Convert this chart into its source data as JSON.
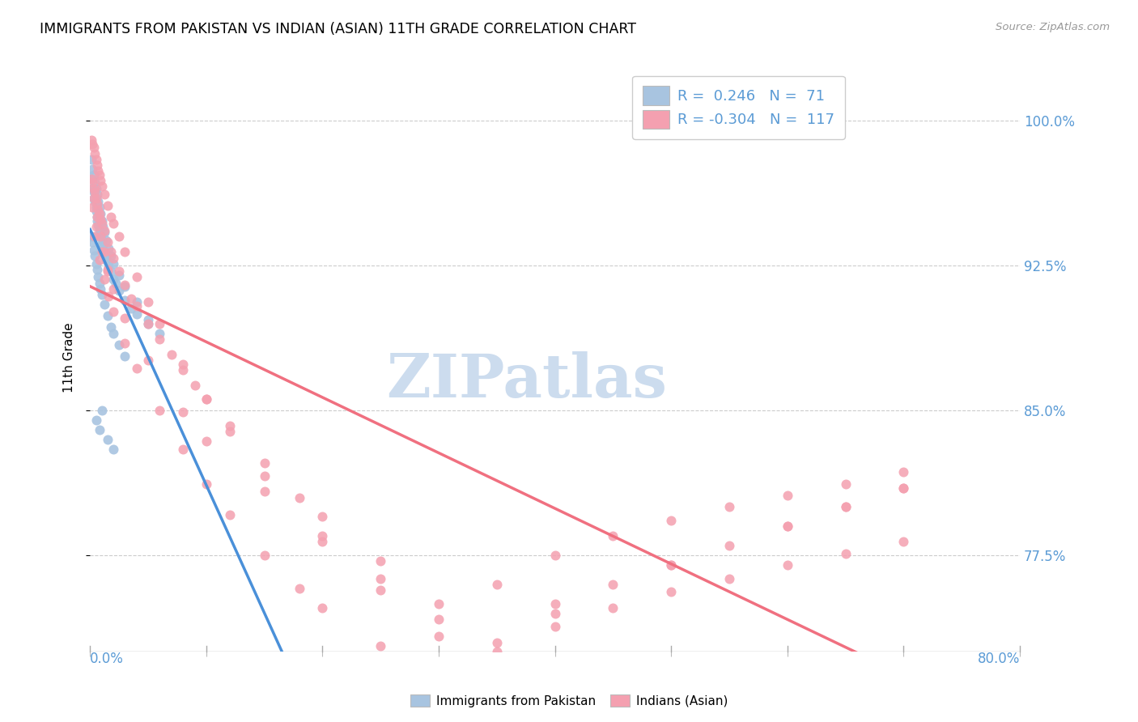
{
  "title": "IMMIGRANTS FROM PAKISTAN VS INDIAN (ASIAN) 11TH GRADE CORRELATION CHART",
  "source": "Source: ZipAtlas.com",
  "ylabel": "11th Grade",
  "ytick_values": [
    1.0,
    0.925,
    0.85,
    0.775
  ],
  "ytick_labels": [
    "100.0%",
    "92.5%",
    "85.0%",
    "77.5%"
  ],
  "xlim": [
    0.0,
    0.8
  ],
  "ylim": [
    0.725,
    1.03
  ],
  "legend_r_pakistan": "0.246",
  "legend_n_pakistan": "71",
  "legend_r_indian": "-0.304",
  "legend_n_indian": "117",
  "color_pakistan": "#a8c4e0",
  "color_indian": "#f4a0b0",
  "color_pakistan_line": "#4a90d9",
  "color_indian_line": "#f07080",
  "color_axis_labels": "#5b9bd5",
  "watermark_color": "#ccdcee",
  "pakistan_x": [
    0.001,
    0.002,
    0.003,
    0.003,
    0.004,
    0.005,
    0.005,
    0.006,
    0.006,
    0.007,
    0.008,
    0.008,
    0.009,
    0.01,
    0.01,
    0.011,
    0.012,
    0.013,
    0.014,
    0.015,
    0.016,
    0.018,
    0.02,
    0.022,
    0.025,
    0.03,
    0.035,
    0.04,
    0.05,
    0.06,
    0.001,
    0.002,
    0.003,
    0.004,
    0.005,
    0.006,
    0.007,
    0.008,
    0.009,
    0.01,
    0.011,
    0.012,
    0.014,
    0.016,
    0.018,
    0.02,
    0.025,
    0.03,
    0.04,
    0.05,
    0.001,
    0.002,
    0.003,
    0.004,
    0.005,
    0.006,
    0.007,
    0.008,
    0.009,
    0.01,
    0.012,
    0.015,
    0.018,
    0.02,
    0.025,
    0.03,
    0.01,
    0.005,
    0.008,
    0.015,
    0.02
  ],
  "pakistan_y": [
    0.97,
    0.965,
    0.963,
    0.96,
    0.958,
    0.955,
    0.953,
    0.95,
    0.948,
    0.946,
    0.944,
    0.942,
    0.94,
    0.938,
    0.936,
    0.934,
    0.932,
    0.93,
    0.928,
    0.927,
    0.925,
    0.922,
    0.918,
    0.916,
    0.912,
    0.907,
    0.903,
    0.9,
    0.895,
    0.89,
    0.98,
    0.975,
    0.972,
    0.968,
    0.965,
    0.962,
    0.958,
    0.955,
    0.952,
    0.948,
    0.945,
    0.942,
    0.938,
    0.934,
    0.93,
    0.926,
    0.92,
    0.914,
    0.906,
    0.897,
    0.94,
    0.937,
    0.933,
    0.93,
    0.926,
    0.923,
    0.919,
    0.916,
    0.913,
    0.91,
    0.905,
    0.899,
    0.893,
    0.89,
    0.884,
    0.878,
    0.85,
    0.845,
    0.84,
    0.835,
    0.83
  ],
  "indian_x": [
    0.001,
    0.002,
    0.003,
    0.004,
    0.005,
    0.006,
    0.007,
    0.008,
    0.009,
    0.01,
    0.012,
    0.015,
    0.018,
    0.02,
    0.025,
    0.03,
    0.035,
    0.04,
    0.05,
    0.06,
    0.07,
    0.08,
    0.09,
    0.1,
    0.12,
    0.15,
    0.18,
    0.2,
    0.25,
    0.3,
    0.35,
    0.4,
    0.45,
    0.5,
    0.55,
    0.6,
    0.65,
    0.7,
    0.001,
    0.002,
    0.003,
    0.004,
    0.005,
    0.006,
    0.007,
    0.008,
    0.009,
    0.01,
    0.012,
    0.015,
    0.018,
    0.02,
    0.025,
    0.03,
    0.04,
    0.05,
    0.06,
    0.08,
    0.1,
    0.12,
    0.15,
    0.2,
    0.25,
    0.3,
    0.35,
    0.4,
    0.5,
    0.6,
    0.65,
    0.7,
    0.002,
    0.005,
    0.01,
    0.015,
    0.02,
    0.03,
    0.05,
    0.08,
    0.1,
    0.15,
    0.2,
    0.25,
    0.3,
    0.35,
    0.4,
    0.45,
    0.5,
    0.55,
    0.6,
    0.65,
    0.7,
    0.004,
    0.008,
    0.012,
    0.016,
    0.02,
    0.03,
    0.04,
    0.06,
    0.08,
    0.1,
    0.12,
    0.15,
    0.18,
    0.2,
    0.25,
    0.3,
    0.35,
    0.4,
    0.45,
    0.5,
    0.55,
    0.6,
    0.65,
    0.7,
    0.003,
    0.006,
    0.009,
    0.012,
    0.015
  ],
  "indian_y": [
    0.97,
    0.968,
    0.965,
    0.963,
    0.96,
    0.957,
    0.954,
    0.952,
    0.949,
    0.947,
    0.943,
    0.937,
    0.932,
    0.929,
    0.922,
    0.915,
    0.908,
    0.904,
    0.895,
    0.887,
    0.879,
    0.871,
    0.863,
    0.856,
    0.842,
    0.823,
    0.805,
    0.795,
    0.772,
    0.75,
    0.73,
    0.745,
    0.76,
    0.77,
    0.78,
    0.79,
    0.8,
    0.81,
    0.99,
    0.988,
    0.986,
    0.983,
    0.98,
    0.977,
    0.974,
    0.972,
    0.969,
    0.966,
    0.962,
    0.956,
    0.95,
    0.947,
    0.94,
    0.932,
    0.919,
    0.906,
    0.895,
    0.874,
    0.856,
    0.839,
    0.816,
    0.782,
    0.757,
    0.733,
    0.71,
    0.75,
    0.77,
    0.79,
    0.8,
    0.81,
    0.955,
    0.945,
    0.932,
    0.922,
    0.913,
    0.898,
    0.876,
    0.849,
    0.834,
    0.808,
    0.785,
    0.763,
    0.742,
    0.76,
    0.775,
    0.785,
    0.793,
    0.8,
    0.806,
    0.812,
    0.818,
    0.94,
    0.928,
    0.918,
    0.909,
    0.901,
    0.885,
    0.872,
    0.85,
    0.83,
    0.812,
    0.796,
    0.775,
    0.758,
    0.748,
    0.728,
    0.71,
    0.725,
    0.738,
    0.748,
    0.756,
    0.763,
    0.77,
    0.776,
    0.782,
    0.96,
    0.95,
    0.94,
    0.932,
    0.923
  ]
}
